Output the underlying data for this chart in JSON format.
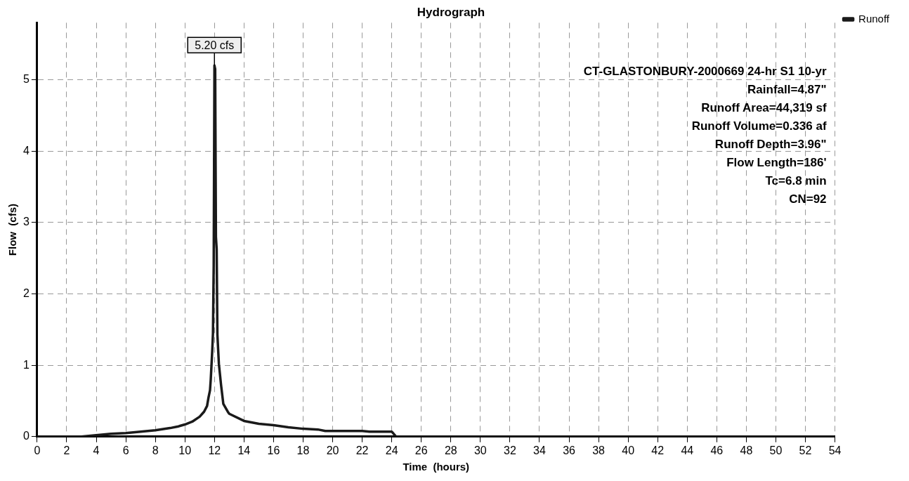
{
  "chart_data": {
    "type": "line",
    "title": "Hydrograph",
    "xlabel": "Time  (hours)",
    "ylabel": "Flow  (cfs)",
    "x": [
      0,
      3,
      3.5,
      4,
      5,
      6,
      7,
      8,
      9,
      9.5,
      10,
      10.5,
      11,
      11.3,
      11.5,
      11.6,
      11.7,
      11.75,
      11.8,
      11.85,
      11.9,
      11.95,
      12,
      12.05,
      12.1,
      12.15,
      12.2,
      12.3,
      12.45,
      12.6,
      12.9,
      13,
      14,
      15,
      16,
      17,
      18,
      19,
      19.5,
      20,
      22,
      22.5,
      24,
      24.3,
      26,
      54
    ],
    "series": [
      {
        "name": "Runoff",
        "color": "#1a1a1a",
        "values": [
          0,
          0,
          0.01,
          0.02,
          0.04,
          0.05,
          0.07,
          0.09,
          0.12,
          0.14,
          0.17,
          0.21,
          0.28,
          0.35,
          0.43,
          0.55,
          0.65,
          0.8,
          1.0,
          1.2,
          1.45,
          2.4,
          5.2,
          5.15,
          2.8,
          2.63,
          1.43,
          1.02,
          0.72,
          0.46,
          0.35,
          0.32,
          0.22,
          0.18,
          0.16,
          0.13,
          0.11,
          0.1,
          0.08,
          0.08,
          0.08,
          0.07,
          0.07,
          0,
          0,
          0
        ]
      }
    ],
    "xlim": [
      0,
      54
    ],
    "xticks": [
      0,
      2,
      4,
      6,
      8,
      10,
      12,
      14,
      16,
      18,
      20,
      22,
      24,
      26,
      28,
      30,
      32,
      34,
      36,
      38,
      40,
      42,
      44,
      46,
      48,
      50,
      52,
      54
    ],
    "ylim": [
      0,
      5.8
    ],
    "yticks": [
      0,
      1,
      2,
      3,
      4,
      5
    ],
    "grid": true,
    "legend": "top right",
    "marker": "none",
    "line_style": "solid",
    "annotations": [
      {
        "text": "5.20 cfs",
        "x": 12,
        "y": 5.2
      },
      "CT-GLASTONBURY-2000669 24-hr S1 10-yr",
      "Rainfall=4.87\"",
      "Runoff Area=44,319 sf",
      "Runoff Volume=0.336 af",
      "Runoff Depth=3.96\"",
      "Flow Length=186'",
      "Tc=6.8 min",
      "CN=92"
    ]
  }
}
